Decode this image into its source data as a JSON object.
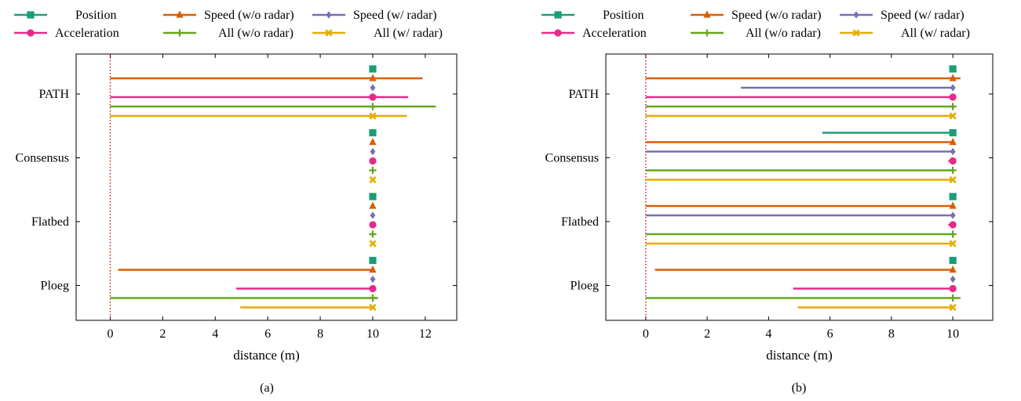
{
  "colors": {
    "position": "#1b9e77",
    "speed_no_radar": "#d95f02",
    "speed_radar": "#7570b3",
    "acceleration": "#e7298a",
    "all_no_radar": "#66a61e",
    "all_radar": "#e6ab02",
    "reference_line": "#cc0000"
  },
  "chart_data": [
    {
      "type": "range-bar",
      "caption": "(a)",
      "xlabel": "distance (m)",
      "xlim": [
        -1.3,
        13.2
      ],
      "xticks": [
        0,
        2,
        4,
        6,
        8,
        10,
        12
      ],
      "reference_x": 0,
      "categories": [
        "PATH",
        "Consensus",
        "Flatbed",
        "Ploeg"
      ],
      "legend": [
        {
          "key": "position",
          "label": "Position",
          "marker": "square"
        },
        {
          "key": "speed_no_radar",
          "label": "Speed (w/o radar)",
          "marker": "triangle"
        },
        {
          "key": "speed_radar",
          "label": "Speed (w/ radar)",
          "marker": "diamond"
        },
        {
          "key": "acceleration",
          "label": "Acceleration",
          "marker": "circle"
        },
        {
          "key": "all_no_radar",
          "label": "All (w/o radar)",
          "marker": "plus"
        },
        {
          "key": "all_radar",
          "label": "All (w/ radar)",
          "marker": "x"
        }
      ],
      "series": [
        {
          "key": "position",
          "ranges": [
            [
              10.0,
              10.0
            ],
            [
              10.0,
              10.0
            ],
            [
              10.0,
              10.0
            ],
            [
              10.0,
              10.0
            ]
          ]
        },
        {
          "key": "speed_no_radar",
          "ranges": [
            [
              0.0,
              11.9
            ],
            [
              10.0,
              10.0
            ],
            [
              10.0,
              10.0
            ],
            [
              0.3,
              10.0
            ]
          ]
        },
        {
          "key": "speed_radar",
          "ranges": [
            [
              10.0,
              10.0
            ],
            [
              10.0,
              10.0
            ],
            [
              10.0,
              10.0
            ],
            [
              10.0,
              10.0
            ]
          ]
        },
        {
          "key": "acceleration",
          "ranges": [
            [
              0.0,
              11.35
            ],
            [
              10.0,
              10.0
            ],
            [
              10.0,
              10.0
            ],
            [
              4.8,
              10.0
            ]
          ]
        },
        {
          "key": "all_no_radar",
          "ranges": [
            [
              0.0,
              12.4
            ],
            [
              9.97,
              10.03
            ],
            [
              9.92,
              10.05
            ],
            [
              0.0,
              10.2
            ]
          ]
        },
        {
          "key": "all_radar",
          "ranges": [
            [
              0.0,
              11.3
            ],
            [
              10.0,
              10.0
            ],
            [
              10.0,
              10.0
            ],
            [
              4.95,
              10.0
            ]
          ]
        }
      ]
    },
    {
      "type": "range-bar",
      "caption": "(b)",
      "xlabel": "distance (m)",
      "xlim": [
        -1.3,
        11.3
      ],
      "xticks": [
        0,
        2,
        4,
        6,
        8,
        10
      ],
      "reference_x": 0,
      "categories": [
        "PATH",
        "Consensus",
        "Flatbed",
        "Ploeg"
      ],
      "legend": [
        {
          "key": "position",
          "label": "Position",
          "marker": "square"
        },
        {
          "key": "speed_no_radar",
          "label": "Speed (w/o radar)",
          "marker": "triangle"
        },
        {
          "key": "speed_radar",
          "label": "Speed (w/ radar)",
          "marker": "diamond"
        },
        {
          "key": "acceleration",
          "label": "Acceleration",
          "marker": "circle"
        },
        {
          "key": "all_no_radar",
          "label": "All (w/o radar)",
          "marker": "plus"
        },
        {
          "key": "all_radar",
          "label": "All (w/ radar)",
          "marker": "x"
        }
      ],
      "series": [
        {
          "key": "position",
          "ranges": [
            [
              10.0,
              10.0
            ],
            [
              5.75,
              10.0
            ],
            [
              10.0,
              10.0
            ],
            [
              10.0,
              10.0
            ]
          ]
        },
        {
          "key": "speed_no_radar",
          "ranges": [
            [
              0.0,
              10.25
            ],
            [
              0.0,
              10.05
            ],
            [
              0.0,
              10.0
            ],
            [
              0.3,
              10.05
            ]
          ]
        },
        {
          "key": "speed_radar",
          "ranges": [
            [
              3.1,
              10.0
            ],
            [
              0.0,
              10.0
            ],
            [
              0.0,
              10.0
            ],
            [
              10.0,
              10.0
            ]
          ]
        },
        {
          "key": "acceleration",
          "ranges": [
            [
              0.0,
              10.0
            ],
            [
              9.85,
              10.0
            ],
            [
              9.85,
              10.0
            ],
            [
              4.8,
              10.0
            ]
          ]
        },
        {
          "key": "all_no_radar",
          "ranges": [
            [
              0.0,
              10.05
            ],
            [
              0.0,
              10.0
            ],
            [
              0.0,
              10.05
            ],
            [
              0.0,
              10.25
            ]
          ]
        },
        {
          "key": "all_radar",
          "ranges": [
            [
              0.0,
              10.05
            ],
            [
              0.0,
              10.05
            ],
            [
              0.0,
              10.05
            ],
            [
              4.95,
              10.0
            ]
          ]
        }
      ]
    }
  ]
}
